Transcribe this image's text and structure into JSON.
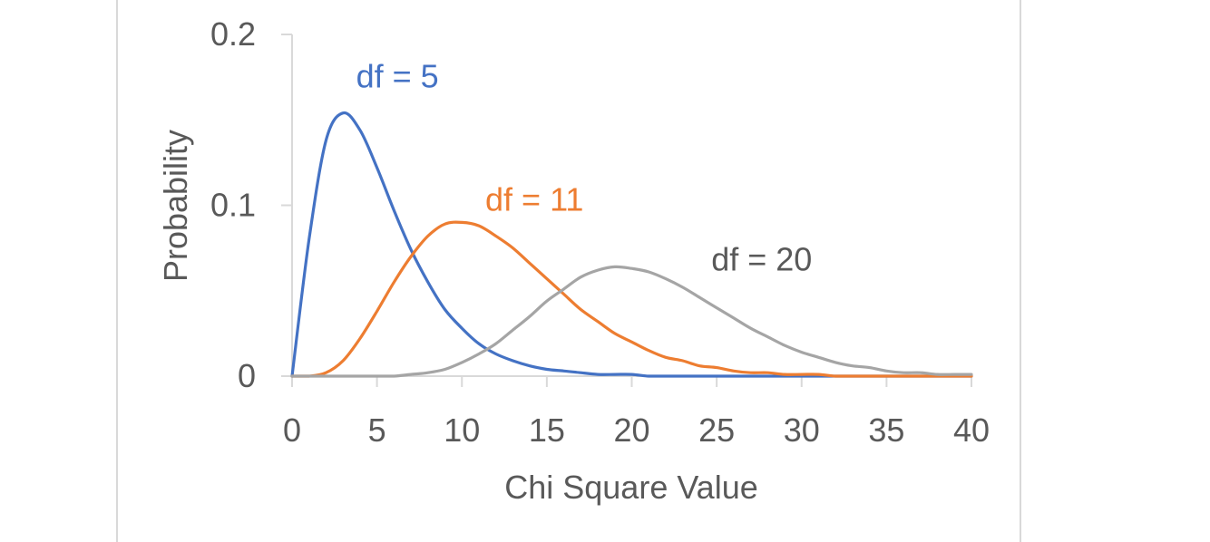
{
  "chart_data": {
    "type": "line",
    "title": "",
    "xlabel": "Chi Square Value",
    "ylabel": "Probability",
    "xlim": [
      0,
      40
    ],
    "ylim": [
      0,
      0.2
    ],
    "x_ticks": [
      "0",
      "5",
      "10",
      "15",
      "20",
      "25",
      "30",
      "35",
      "40"
    ],
    "y_ticks": [
      "0",
      "0.1",
      "0.2"
    ],
    "grid": false,
    "legend": "none",
    "x": [
      0,
      1,
      2,
      3,
      4,
      5,
      6,
      7,
      8,
      9,
      10,
      11,
      12,
      13,
      14,
      15,
      16,
      17,
      18,
      19,
      20,
      21,
      22,
      23,
      24,
      25,
      26,
      27,
      28,
      29,
      30,
      31,
      32,
      33,
      34,
      35,
      36,
      37,
      38,
      39,
      40
    ],
    "series": [
      {
        "name": "df = 5",
        "color": "#4472c4",
        "values": [
          0,
          0.08,
          0.138,
          0.154,
          0.144,
          0.122,
          0.097,
          0.074,
          0.055,
          0.039,
          0.028,
          0.019,
          0.013,
          0.009,
          0.006,
          0.004,
          0.003,
          0.002,
          0.001,
          0.001,
          0.001,
          0,
          0,
          0,
          0,
          0,
          0,
          0,
          0,
          0,
          0,
          0,
          0,
          0,
          0,
          0,
          0,
          0,
          0,
          0,
          0
        ]
      },
      {
        "name": "df = 11",
        "color": "#ed7d31",
        "values": [
          0,
          0,
          0.002,
          0.009,
          0.022,
          0.038,
          0.055,
          0.07,
          0.082,
          0.089,
          0.09,
          0.088,
          0.082,
          0.075,
          0.066,
          0.057,
          0.048,
          0.039,
          0.032,
          0.025,
          0.02,
          0.015,
          0.011,
          0.009,
          0.006,
          0.005,
          0.003,
          0.002,
          0.002,
          0.001,
          0.001,
          0.001,
          0,
          0,
          0,
          0,
          0,
          0,
          0,
          0,
          0
        ]
      },
      {
        "name": "df = 20",
        "color": "#a5a5a5",
        "values": [
          0,
          0,
          0,
          0,
          0,
          0,
          0,
          0.001,
          0.002,
          0.004,
          0.008,
          0.013,
          0.019,
          0.027,
          0.035,
          0.044,
          0.051,
          0.058,
          0.062,
          0.064,
          0.063,
          0.061,
          0.057,
          0.052,
          0.046,
          0.04,
          0.034,
          0.028,
          0.023,
          0.018,
          0.014,
          0.011,
          0.008,
          0.006,
          0.005,
          0.003,
          0.002,
          0.002,
          0.001,
          0.001,
          0.001
        ]
      }
    ]
  }
}
